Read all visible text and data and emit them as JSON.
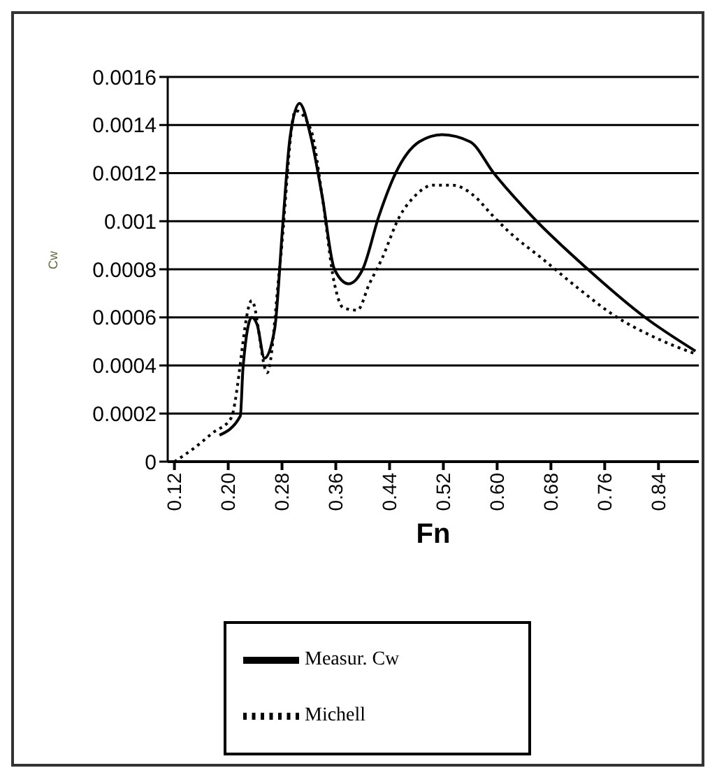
{
  "chart_data": {
    "type": "line",
    "xlabel": "Fn",
    "ylabel": "Cw",
    "xlim": [
      0.11,
      0.9
    ],
    "xticks": [
      0.12,
      {
        "value": 0.2,
        "label": "0.20"
      },
      0.28,
      0.36,
      0.44,
      0.52,
      {
        "value": 0.6,
        "label": "0.60"
      },
      0.68,
      0.76,
      0.84
    ],
    "ylim": [
      0,
      0.0016
    ],
    "yticks": [
      0,
      0.0002,
      0.0004,
      0.0006,
      0.0008,
      0.001,
      0.0012,
      0.0014,
      0.0016
    ],
    "grid": "y",
    "legend": "bottom",
    "marker": "none",
    "series": [
      {
        "name": "Measur. Cw",
        "color": "#000000",
        "line_style": "solid",
        "x": [
          0.187,
          0.218,
          0.222,
          0.235,
          0.243,
          0.254,
          0.269,
          0.281,
          0.292,
          0.306,
          0.323,
          0.34,
          0.358,
          0.379,
          0.4,
          0.424,
          0.449,
          0.484,
          0.518,
          0.56,
          0.595,
          0.652,
          0.735,
          0.82,
          0.895
        ],
        "values": [
          0.00011,
          0.00019,
          0.00039,
          0.0006,
          0.00057,
          0.00043,
          0.00055,
          0.00098,
          0.00135,
          0.00149,
          0.00135,
          0.0011,
          0.0008,
          0.00074,
          0.0008,
          0.00102,
          0.0012,
          0.00133,
          0.00136,
          0.00133,
          0.0012,
          0.00102,
          0.0008,
          0.0006,
          0.00046
        ]
      },
      {
        "name": "Michell",
        "color": "#000000",
        "line_style": "dotted",
        "x": [
          0.12,
          0.151,
          0.177,
          0.204,
          0.235,
          0.258,
          0.277,
          0.3,
          0.323,
          0.34,
          0.358,
          0.371,
          0.392,
          0.41,
          0.428,
          0.455,
          0.476,
          0.505,
          0.533,
          0.568,
          0.591,
          0.616,
          0.669,
          0.721,
          0.773,
          0.832,
          0.893
        ],
        "values": [
          0,
          6e-05,
          0.00012,
          0.00018,
          0.00067,
          0.00037,
          0.00082,
          0.00146,
          0.00138,
          0.0011,
          0.00074,
          0.00064,
          0.00063,
          0.00074,
          0.00084,
          0.00102,
          0.0011,
          0.00115,
          0.00115,
          0.0011,
          0.00103,
          0.00096,
          0.00084,
          0.00072,
          0.00061,
          0.00052,
          0.00045
        ]
      }
    ]
  }
}
